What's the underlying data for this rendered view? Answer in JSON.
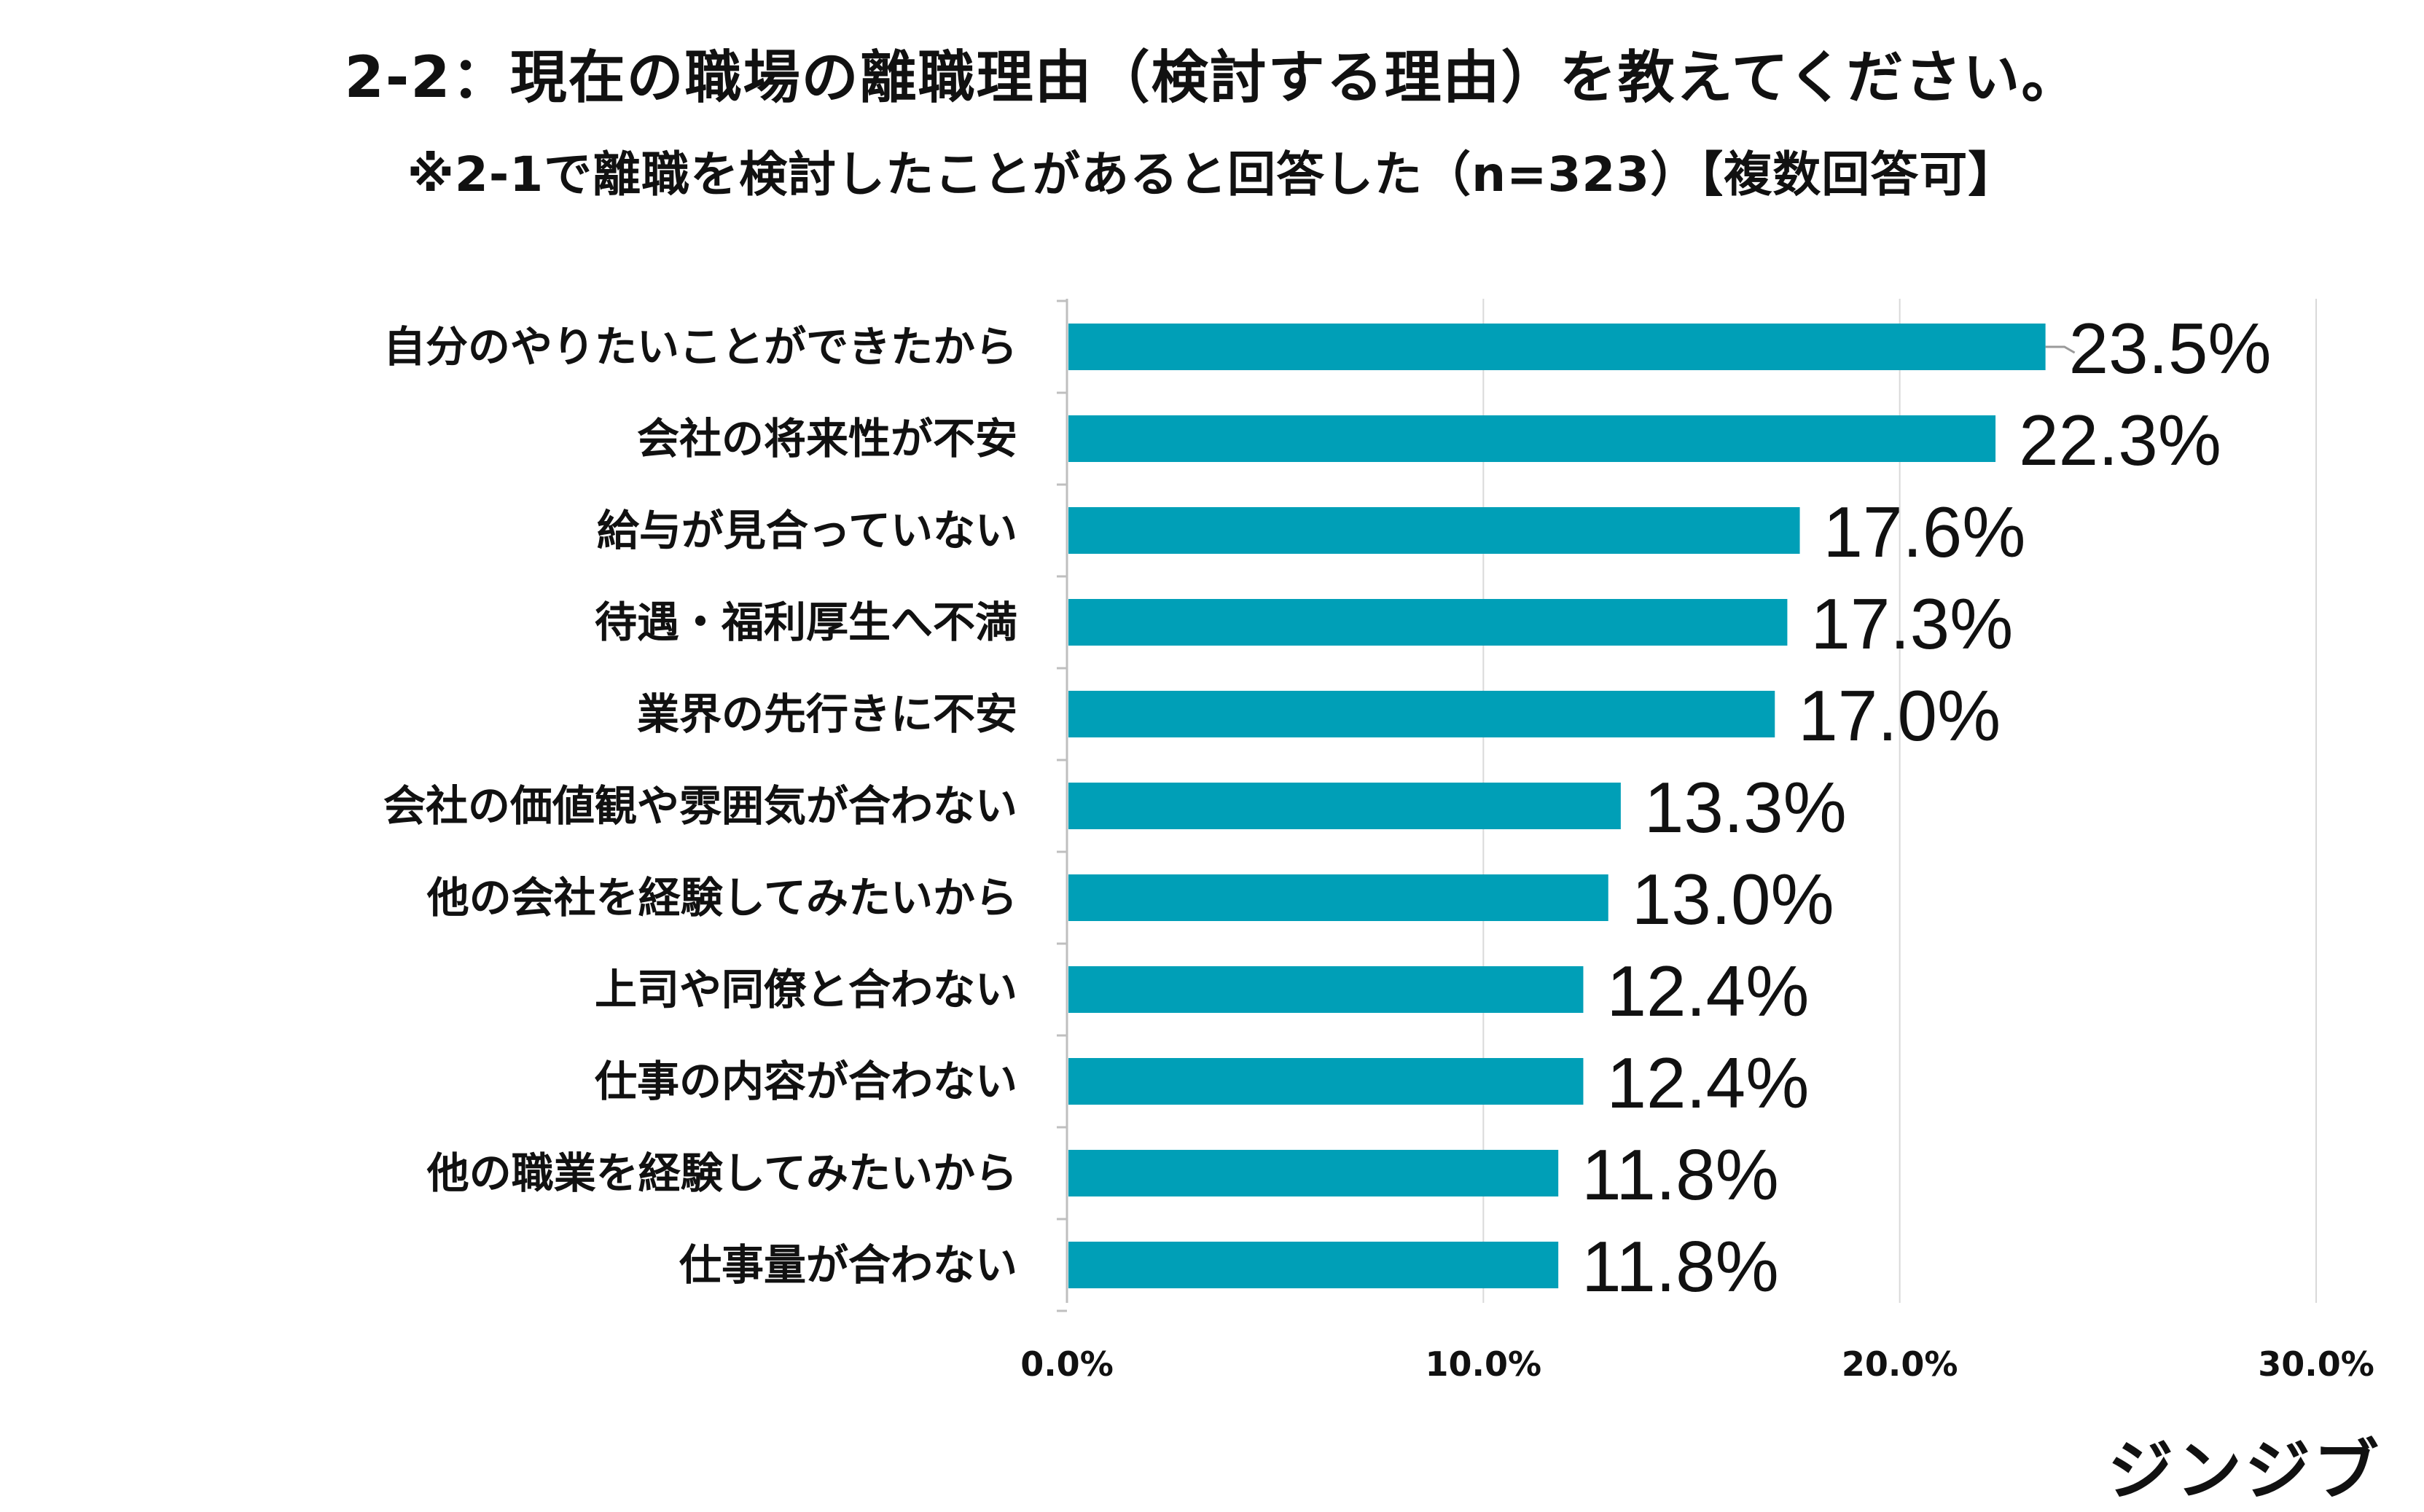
{
  "chart_data": {
    "type": "bar",
    "orientation": "horizontal",
    "title": "2-2：現在の職場の離職理由（検討する理由）を教えてください。",
    "subtitle": "※2-1で離職を検討したことがあると回答した（n=323）【複数回答可】",
    "categories": [
      "自分のやりたいことができたから",
      "会社の将来性が不安",
      "給与が見合っていない",
      "待遇・福利厚生へ不満",
      "業界の先行きに不安",
      "会社の価値観や雰囲気が合わない",
      "他の会社を経験してみたいから",
      "上司や同僚と合わない",
      "仕事の内容が合わない",
      "他の職業を経験してみたいから",
      "仕事量が合わない"
    ],
    "values": [
      23.5,
      22.3,
      17.6,
      17.3,
      17.0,
      13.3,
      13.0,
      12.4,
      12.4,
      11.8,
      11.8
    ],
    "value_labels": [
      "23.5%",
      "22.3%",
      "17.6%",
      "17.3%",
      "17.0%",
      "13.3%",
      "13.0%",
      "12.4%",
      "12.4%",
      "11.8%",
      "11.8%"
    ],
    "xlim": [
      0,
      30
    ],
    "ticks": [
      0,
      10,
      20,
      30
    ],
    "tick_labels": [
      "0.0%",
      "10.0%",
      "20.0%",
      "30.0%"
    ],
    "xlabel": "",
    "ylabel": "",
    "grid": true,
    "legend": "none",
    "colors": {
      "bar": "#009fb7",
      "grid": "#d9d9d9"
    }
  },
  "brand": "ジンジブ"
}
